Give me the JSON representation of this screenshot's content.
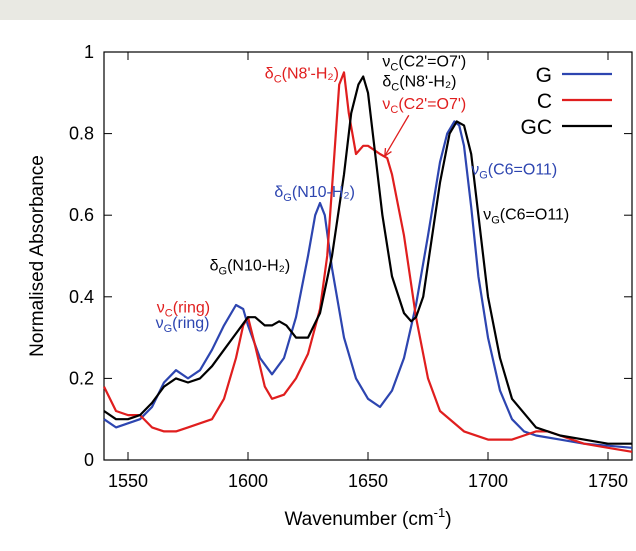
{
  "chart_data": {
    "type": "line",
    "xlabel_main": "Wavenumber (cm",
    "xlabel_sup": "-1",
    "xlabel_end": ")",
    "ylabel": "Normalised Absorbance",
    "xlim": [
      1540,
      1760
    ],
    "ylim": [
      0,
      1
    ],
    "x_ticks": [
      1550,
      1600,
      1650,
      1700,
      1750
    ],
    "y_ticks": [
      0,
      0.2,
      0.4,
      0.6,
      0.8,
      1
    ],
    "y_tick_labels": [
      "0",
      "0.2",
      "0.4",
      "0.6",
      "0.8",
      "1"
    ],
    "grid": false,
    "legend_position": "top-right",
    "series": [
      {
        "name": "G",
        "color": "#2d45b0",
        "x": [
          1540,
          1545,
          1550,
          1555,
          1560,
          1565,
          1570,
          1575,
          1580,
          1585,
          1590,
          1595,
          1598,
          1600,
          1605,
          1610,
          1615,
          1620,
          1625,
          1628,
          1630,
          1632,
          1635,
          1640,
          1645,
          1650,
          1655,
          1660,
          1665,
          1670,
          1675,
          1680,
          1683,
          1686,
          1688,
          1690,
          1693,
          1696,
          1700,
          1705,
          1710,
          1715,
          1720,
          1730,
          1740,
          1750,
          1760
        ],
        "y": [
          0.1,
          0.08,
          0.09,
          0.1,
          0.13,
          0.19,
          0.22,
          0.2,
          0.22,
          0.27,
          0.33,
          0.38,
          0.37,
          0.33,
          0.25,
          0.21,
          0.25,
          0.35,
          0.5,
          0.6,
          0.63,
          0.6,
          0.47,
          0.3,
          0.2,
          0.15,
          0.13,
          0.17,
          0.25,
          0.38,
          0.55,
          0.73,
          0.8,
          0.83,
          0.82,
          0.77,
          0.62,
          0.45,
          0.3,
          0.17,
          0.1,
          0.07,
          0.06,
          0.05,
          0.04,
          0.035,
          0.03
        ]
      },
      {
        "name": "C",
        "color": "#e01e1e",
        "x": [
          1540,
          1545,
          1550,
          1555,
          1560,
          1565,
          1570,
          1575,
          1580,
          1585,
          1590,
          1595,
          1598,
          1600,
          1603,
          1607,
          1610,
          1615,
          1620,
          1625,
          1630,
          1633,
          1636,
          1638,
          1640,
          1642,
          1645,
          1648,
          1650,
          1655,
          1658,
          1660,
          1665,
          1670,
          1675,
          1680,
          1690,
          1700,
          1710,
          1715,
          1720,
          1725,
          1730,
          1740,
          1750,
          1760
        ],
        "y": [
          0.18,
          0.12,
          0.11,
          0.11,
          0.08,
          0.07,
          0.07,
          0.08,
          0.09,
          0.1,
          0.15,
          0.25,
          0.33,
          0.35,
          0.28,
          0.18,
          0.15,
          0.16,
          0.2,
          0.26,
          0.37,
          0.5,
          0.75,
          0.92,
          0.95,
          0.85,
          0.75,
          0.77,
          0.77,
          0.75,
          0.74,
          0.7,
          0.55,
          0.35,
          0.2,
          0.12,
          0.07,
          0.05,
          0.05,
          0.06,
          0.07,
          0.07,
          0.06,
          0.04,
          0.03,
          0.02
        ]
      },
      {
        "name": "GC",
        "color": "#000000",
        "x": [
          1540,
          1545,
          1550,
          1555,
          1560,
          1565,
          1570,
          1575,
          1580,
          1585,
          1590,
          1595,
          1600,
          1603,
          1607,
          1610,
          1613,
          1616,
          1620,
          1625,
          1630,
          1635,
          1640,
          1643,
          1646,
          1648,
          1650,
          1653,
          1656,
          1660,
          1665,
          1668,
          1670,
          1673,
          1676,
          1680,
          1684,
          1687,
          1690,
          1693,
          1696,
          1700,
          1705,
          1710,
          1720,
          1730,
          1740,
          1750,
          1760
        ],
        "y": [
          0.12,
          0.1,
          0.1,
          0.11,
          0.14,
          0.18,
          0.2,
          0.19,
          0.2,
          0.23,
          0.27,
          0.31,
          0.35,
          0.35,
          0.33,
          0.33,
          0.34,
          0.33,
          0.3,
          0.3,
          0.36,
          0.5,
          0.7,
          0.85,
          0.92,
          0.94,
          0.9,
          0.75,
          0.6,
          0.45,
          0.36,
          0.34,
          0.35,
          0.4,
          0.52,
          0.68,
          0.8,
          0.83,
          0.82,
          0.75,
          0.6,
          0.4,
          0.25,
          0.15,
          0.08,
          0.06,
          0.05,
          0.04,
          0.04
        ]
      }
    ],
    "annotations": [
      {
        "id": "g-ring",
        "color": "#2d45b0",
        "sym": "ν",
        "sub": "G",
        "rest": "(ring)",
        "x": 1561.5,
        "y": 0.323
      },
      {
        "id": "c-ring",
        "color": "#e01e1e",
        "sym": "ν",
        "sub": "C",
        "rest": "(ring)",
        "x": 1562,
        "y": 0.362
      },
      {
        "id": "gc-n10",
        "color": "#000000",
        "sym": "δ",
        "sub": "G",
        "rest": "(N10-H₂)",
        "x": 1584,
        "y": 0.465
      },
      {
        "id": "g-n10",
        "color": "#2d45b0",
        "sym": "δ",
        "sub": "G",
        "rest": "(N10-H₂)",
        "x": 1611,
        "y": 0.645
      },
      {
        "id": "c-n8",
        "color": "#e01e1e",
        "sym": "δ",
        "sub": "C",
        "rest": "(N8'-H₂)",
        "x": 1607,
        "y": 0.935
      },
      {
        "id": "gc-c2",
        "color": "#000000",
        "sym": "ν",
        "sub": "C",
        "rest": "(C2'=O7')",
        "x": 1656,
        "y": 0.965
      },
      {
        "id": "gc-n8",
        "color": "#000000",
        "sym": "δ",
        "sub": "C",
        "rest": "(N8'-H₂)",
        "x": 1656,
        "y": 0.915
      },
      {
        "id": "c-c2",
        "color": "#e01e1e",
        "sym": "ν",
        "sub": "C",
        "rest": "(C2'=O7')",
        "x": 1656,
        "y": 0.86
      },
      {
        "id": "g-c6",
        "color": "#2d45b0",
        "sym": "ν",
        "sub": "G",
        "rest": "(C6=O11)",
        "x": 1693,
        "y": 0.7
      },
      {
        "id": "gc-c6",
        "color": "#000000",
        "sym": "ν",
        "sub": "G",
        "rest": "(C6=O11)",
        "x": 1698,
        "y": 0.59
      }
    ]
  }
}
